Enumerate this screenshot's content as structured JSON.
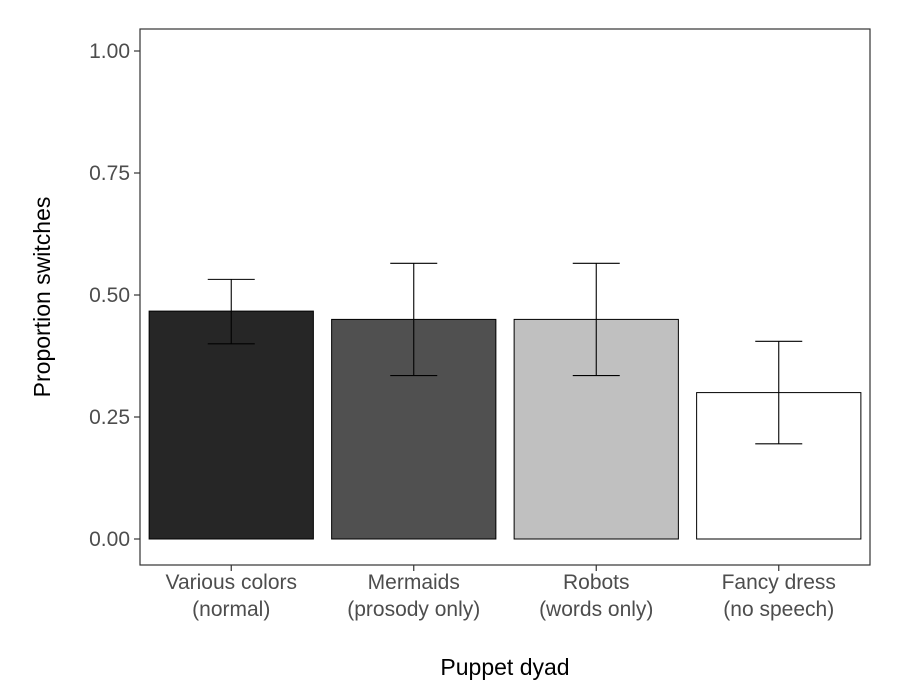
{
  "chart_data": {
    "type": "bar",
    "title": "",
    "xlabel": "Puppet dyad",
    "ylabel": "Proportion switches",
    "ylim": [
      0,
      1
    ],
    "yticks": [
      "0.00",
      "0.25",
      "0.50",
      "0.75",
      "1.00"
    ],
    "ytick_values": [
      0,
      0.25,
      0.5,
      0.75,
      1.0
    ],
    "categories": [
      [
        "Various colors",
        "(normal)"
      ],
      [
        "Mermaids",
        "(prosody only)"
      ],
      [
        "Robots",
        "(words only)"
      ],
      [
        "Fancy dress",
        "(no speech)"
      ]
    ],
    "values": [
      0.467,
      0.45,
      0.45,
      0.3
    ],
    "error_low": [
      0.4,
      0.335,
      0.335,
      0.195
    ],
    "error_high": [
      0.532,
      0.565,
      0.565,
      0.405
    ],
    "bar_colors": [
      "#262626",
      "#505050",
      "#c0c0c0",
      "#ffffff"
    ],
    "grid": false,
    "legend": "none"
  }
}
